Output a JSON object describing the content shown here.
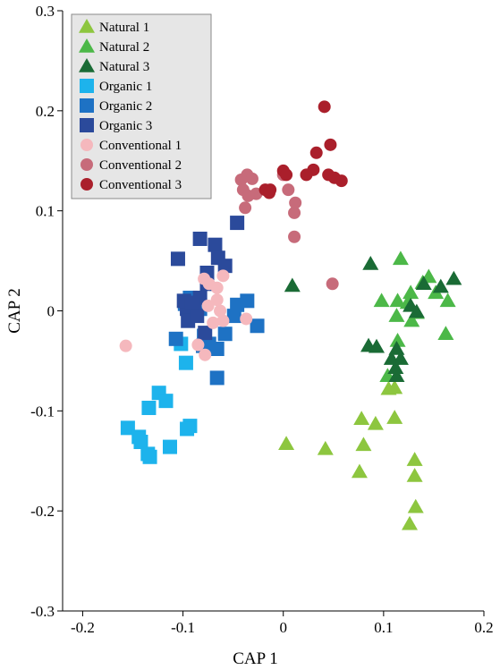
{
  "chart_data": {
    "type": "scatter",
    "title": "",
    "xlabel": "CAP 1",
    "ylabel": "CAP 2",
    "xlim": [
      -0.22,
      0.2
    ],
    "ylim": [
      -0.3,
      0.3
    ],
    "xticks": [
      -0.2,
      -0.1,
      0,
      0.1,
      0.2
    ],
    "xtick_labels": [
      "-0.2",
      "-0.1",
      "0",
      "0.1",
      "0.2"
    ],
    "yticks": [
      -0.3,
      -0.2,
      -0.1,
      0,
      0.1,
      0.2,
      0.3
    ],
    "ytick_labels": [
      "-0.3",
      "-0.2",
      "-0.1",
      "0",
      "0.1",
      "0.2",
      "0.3"
    ],
    "grid": false,
    "legend_position": "top-left",
    "series": [
      {
        "name": "Natural 1",
        "marker": "triangle",
        "color": "#8dc63f",
        "x": [
          0.003,
          0.042,
          0.078,
          0.08,
          0.092,
          0.076,
          0.111,
          0.111,
          0.131,
          0.131,
          0.132,
          0.126,
          0.105
        ],
        "y": [
          -0.133,
          -0.138,
          -0.108,
          -0.134,
          -0.113,
          -0.161,
          -0.107,
          -0.077,
          -0.149,
          -0.165,
          -0.196,
          -0.213,
          -0.078
        ]
      },
      {
        "name": "Natural 2",
        "marker": "triangle",
        "color": "#4cb848",
        "x": [
          0.117,
          0.139,
          0.145,
          0.127,
          0.152,
          0.164,
          0.114,
          0.124,
          0.133,
          0.113,
          0.114,
          0.104,
          0.162,
          0.128,
          0.098
        ],
        "y": [
          0.052,
          0.028,
          0.034,
          0.018,
          0.018,
          0.01,
          0.01,
          0.008,
          -0.002,
          -0.005,
          -0.03,
          -0.065,
          -0.023,
          -0.01,
          0.01
        ]
      },
      {
        "name": "Natural 3",
        "marker": "triangle",
        "color": "#1a6b35",
        "x": [
          0.009,
          0.087,
          0.14,
          0.17,
          0.157,
          0.127,
          0.133,
          0.085,
          0.093,
          0.113,
          0.117,
          0.108,
          0.112,
          0.113
        ],
        "y": [
          0.025,
          0.047,
          0.027,
          0.032,
          0.024,
          0.005,
          -0.001,
          -0.035,
          -0.036,
          -0.038,
          -0.048,
          -0.048,
          -0.057,
          -0.065
        ]
      },
      {
        "name": "Organic 1",
        "marker": "square",
        "color": "#1db3ec",
        "x": [
          -0.155,
          -0.144,
          -0.142,
          -0.135,
          -0.133,
          -0.134,
          -0.124,
          -0.117,
          -0.113,
          -0.097,
          -0.093,
          -0.096,
          -0.102
        ],
        "y": [
          -0.117,
          -0.126,
          -0.131,
          -0.143,
          -0.146,
          -0.097,
          -0.082,
          -0.09,
          -0.136,
          -0.052,
          -0.115,
          -0.118,
          -0.033
        ]
      },
      {
        "name": "Organic 2",
        "marker": "square",
        "color": "#1e72c4",
        "x": [
          -0.107,
          -0.098,
          -0.093,
          -0.084,
          -0.083,
          -0.079,
          -0.074,
          -0.066,
          -0.066,
          -0.058,
          -0.049,
          -0.046,
          -0.036,
          -0.026,
          -0.08
        ],
        "y": [
          -0.028,
          0.007,
          0.013,
          0.012,
          0.002,
          -0.025,
          -0.033,
          -0.067,
          -0.038,
          -0.023,
          -0.005,
          0.006,
          0.01,
          -0.015,
          -0.035
        ]
      },
      {
        "name": "Organic 3",
        "marker": "square",
        "color": "#2b4a9b",
        "x": [
          -0.105,
          -0.083,
          -0.076,
          -0.068,
          -0.065,
          -0.058,
          -0.046,
          -0.076,
          -0.083,
          -0.089,
          -0.096,
          -0.099,
          -0.095,
          -0.078,
          -0.086,
          -0.091
        ],
        "y": [
          0.052,
          0.072,
          0.038,
          0.066,
          0.053,
          0.045,
          0.088,
          0.027,
          0.013,
          0.001,
          0.002,
          0.01,
          -0.01,
          -0.022,
          -0.005,
          0.008
        ]
      },
      {
        "name": "Conventional 1",
        "marker": "circle",
        "color": "#f5b8bd",
        "x": [
          -0.157,
          -0.079,
          -0.074,
          -0.066,
          -0.066,
          -0.063,
          -0.06,
          -0.06,
          -0.07,
          -0.078,
          -0.085,
          -0.037,
          -0.075
        ],
        "y": [
          -0.035,
          0.032,
          0.027,
          0.023,
          0.011,
          0.0,
          0.035,
          -0.01,
          -0.012,
          -0.044,
          -0.034,
          -0.008,
          0.005
        ]
      },
      {
        "name": "Conventional 2",
        "marker": "circle",
        "color": "#c76b7a",
        "x": [
          -0.042,
          -0.036,
          -0.031,
          -0.027,
          -0.04,
          -0.035,
          -0.038,
          0.0,
          0.005,
          0.011,
          0.012,
          0.011,
          0.049
        ],
        "y": [
          0.131,
          0.136,
          0.132,
          0.117,
          0.121,
          0.115,
          0.103,
          0.136,
          0.121,
          0.098,
          0.108,
          0.074,
          0.027
        ]
      },
      {
        "name": "Conventional 3",
        "marker": "circle",
        "color": "#aa1f2b",
        "x": [
          0.033,
          0.047,
          0.03,
          0.045,
          0.051,
          0.058,
          0.041,
          0.023,
          0.0,
          0.003,
          -0.013,
          -0.018,
          -0.014
        ],
        "y": [
          0.158,
          0.166,
          0.141,
          0.136,
          0.133,
          0.13,
          0.204,
          0.136,
          0.14,
          0.136,
          0.121,
          0.121,
          0.118
        ]
      }
    ]
  }
}
